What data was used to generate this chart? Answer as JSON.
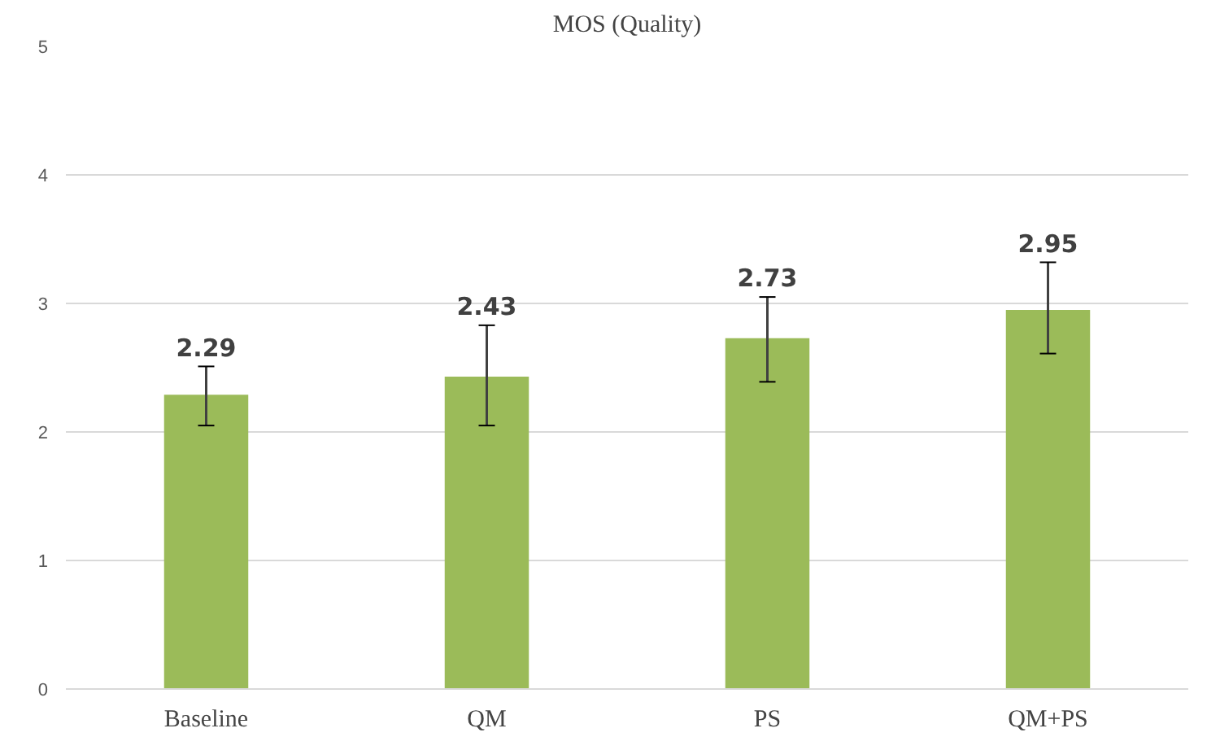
{
  "chart_data": {
    "type": "bar",
    "title": "MOS (Quality)",
    "categories": [
      "Baseline",
      "QM",
      "PS",
      "QM+PS"
    ],
    "values": [
      2.29,
      2.43,
      2.73,
      2.95
    ],
    "errors": [
      [
        2.05,
        2.51
      ],
      [
        2.05,
        2.83
      ],
      [
        2.39,
        3.05
      ],
      [
        2.61,
        3.32
      ]
    ],
    "color": "#9bbb59",
    "ylim": [
      0,
      5
    ],
    "yticks": [
      0,
      1,
      2,
      3,
      4,
      5
    ],
    "grid": "y",
    "data_labels": true
  }
}
